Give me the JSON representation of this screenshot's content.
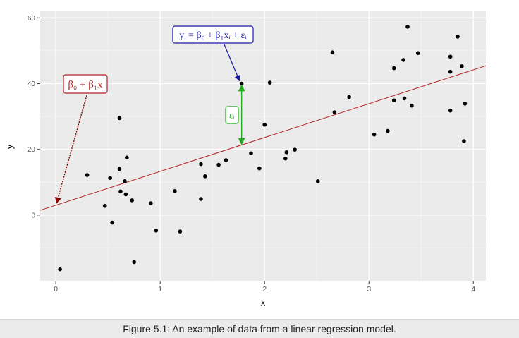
{
  "caption": "Figure 5.1: An example of data from a linear regression model.",
  "chart_data": {
    "type": "scatter",
    "title": "",
    "xlabel": "x",
    "ylabel": "y",
    "xlim": [
      -0.15,
      4.12
    ],
    "ylim": [
      -20,
      62
    ],
    "x_ticks": [
      0,
      1,
      2,
      3,
      4
    ],
    "y_ticks": [
      0,
      20,
      40,
      60
    ],
    "x_tick_labels": [
      "0",
      "1",
      "2",
      "3",
      "4"
    ],
    "y_tick_labels": [
      "0",
      "20",
      "40",
      "60"
    ],
    "x_minor": [
      0.5,
      1.5,
      2.5,
      3.5
    ],
    "y_minor": [
      -10,
      10,
      30,
      50
    ],
    "grid": true,
    "regression_line": {
      "intercept": 3.0,
      "slope": 10.3,
      "color": "#b22222"
    },
    "points": [
      {
        "x": 0.04,
        "y": -16.5
      },
      {
        "x": 0.3,
        "y": 12.2
      },
      {
        "x": 0.47,
        "y": 2.8
      },
      {
        "x": 0.52,
        "y": 11.3
      },
      {
        "x": 0.54,
        "y": -2.3
      },
      {
        "x": 0.61,
        "y": 14.0
      },
      {
        "x": 0.61,
        "y": 29.5
      },
      {
        "x": 0.62,
        "y": 7.2
      },
      {
        "x": 0.66,
        "y": 10.3
      },
      {
        "x": 0.67,
        "y": 6.3
      },
      {
        "x": 0.68,
        "y": 17.5
      },
      {
        "x": 0.73,
        "y": 4.5
      },
      {
        "x": 0.75,
        "y": -14.3
      },
      {
        "x": 0.91,
        "y": 3.6
      },
      {
        "x": 0.96,
        "y": -4.7
      },
      {
        "x": 1.14,
        "y": 7.3
      },
      {
        "x": 1.19,
        "y": -5.0
      },
      {
        "x": 1.39,
        "y": 15.5
      },
      {
        "x": 1.39,
        "y": 4.9
      },
      {
        "x": 1.43,
        "y": 11.8
      },
      {
        "x": 1.56,
        "y": 15.3
      },
      {
        "x": 1.63,
        "y": 16.7
      },
      {
        "x": 1.78,
        "y": 40.0
      },
      {
        "x": 1.87,
        "y": 18.8
      },
      {
        "x": 1.95,
        "y": 14.2
      },
      {
        "x": 2.0,
        "y": 27.5
      },
      {
        "x": 2.05,
        "y": 40.3
      },
      {
        "x": 2.2,
        "y": 17.2
      },
      {
        "x": 2.21,
        "y": 19.1
      },
      {
        "x": 2.29,
        "y": 19.9
      },
      {
        "x": 2.51,
        "y": 10.3
      },
      {
        "x": 2.65,
        "y": 49.5
      },
      {
        "x": 2.67,
        "y": 31.3
      },
      {
        "x": 2.81,
        "y": 35.9
      },
      {
        "x": 3.05,
        "y": 24.5
      },
      {
        "x": 3.18,
        "y": 25.6
      },
      {
        "x": 3.24,
        "y": 34.9
      },
      {
        "x": 3.24,
        "y": 44.7
      },
      {
        "x": 3.33,
        "y": 47.2
      },
      {
        "x": 3.34,
        "y": 35.5
      },
      {
        "x": 3.37,
        "y": 57.3
      },
      {
        "x": 3.41,
        "y": 33.3
      },
      {
        "x": 3.47,
        "y": 49.3
      },
      {
        "x": 3.78,
        "y": 48.2
      },
      {
        "x": 3.78,
        "y": 43.6
      },
      {
        "x": 3.78,
        "y": 31.8
      },
      {
        "x": 3.85,
        "y": 54.3
      },
      {
        "x": 3.89,
        "y": 45.3
      },
      {
        "x": 3.91,
        "y": 22.5
      },
      {
        "x": 3.92,
        "y": 33.9
      }
    ],
    "annotations": {
      "model_label": {
        "text": "yᵢ = β₀ + β₁xᵢ + εᵢ",
        "color": "#1a1aa6",
        "arrow_to": {
          "x": 1.78,
          "y": 40.0
        }
      },
      "line_label": {
        "text": "β₀ + β₁x",
        "color": "#b22222",
        "arrow_to": {
          "x": 0.0,
          "y": 3.0
        }
      },
      "error_label": {
        "text": "εᵢ",
        "color": "#22aa22",
        "from": {
          "x": 1.78,
          "y": 40.0
        },
        "to": {
          "x": 1.78,
          "y": 21.3
        }
      }
    },
    "colors": {
      "panel": "#ebebeb",
      "grid_major": "#ffffff",
      "points": "#000000"
    }
  }
}
